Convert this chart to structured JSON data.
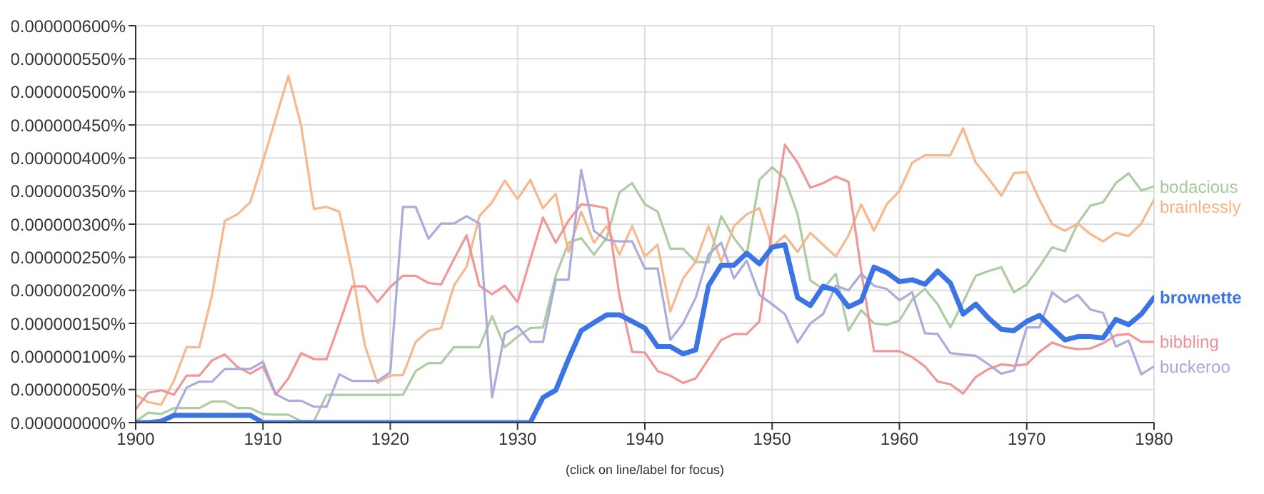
{
  "chart_data": {
    "type": "line",
    "x": [
      1900,
      1901,
      1902,
      1903,
      1904,
      1905,
      1906,
      1907,
      1908,
      1909,
      1910,
      1911,
      1912,
      1913,
      1914,
      1915,
      1916,
      1917,
      1918,
      1919,
      1920,
      1921,
      1922,
      1923,
      1924,
      1925,
      1926,
      1927,
      1928,
      1929,
      1930,
      1931,
      1932,
      1933,
      1934,
      1935,
      1936,
      1937,
      1938,
      1939,
      1940,
      1941,
      1942,
      1943,
      1944,
      1945,
      1946,
      1947,
      1948,
      1949,
      1950,
      1951,
      1952,
      1953,
      1954,
      1955,
      1956,
      1957,
      1958,
      1959,
      1960,
      1961,
      1962,
      1963,
      1964,
      1965,
      1966,
      1967,
      1968,
      1969,
      1970,
      1971,
      1972,
      1973,
      1974,
      1975,
      1976,
      1977,
      1978,
      1979,
      1980
    ],
    "series": [
      {
        "name": "bodacious",
        "color": "#a9c99d",
        "values": [
          2e-09,
          1.5e-08,
          1.3e-08,
          2.2e-08,
          2.2e-08,
          2.2e-08,
          3.2e-08,
          3.2e-08,
          2.2e-08,
          2.2e-08,
          1.3e-08,
          1.2e-08,
          1.2e-08,
          2e-09,
          2e-09,
          4.2e-08,
          4.2e-08,
          4.2e-08,
          4.2e-08,
          4.2e-08,
          4.2e-08,
          4.2e-08,
          7.8e-08,
          9e-08,
          9e-08,
          1.14e-07,
          1.14e-07,
          1.14e-07,
          1.61e-07,
          1.14e-07,
          1.3e-07,
          1.43e-07,
          1.44e-07,
          2.22e-07,
          2.72e-07,
          2.79e-07,
          2.54e-07,
          2.79e-07,
          3.48e-07,
          3.62e-07,
          3.3e-07,
          3.19e-07,
          2.63e-07,
          2.63e-07,
          2.43e-07,
          2.42e-07,
          3.12e-07,
          2.79e-07,
          2.54e-07,
          3.67e-07,
          3.86e-07,
          3.69e-07,
          3.15e-07,
          2.15e-07,
          2.02e-07,
          2.25e-07,
          1.39e-07,
          1.7e-07,
          1.5e-07,
          1.48e-07,
          1.54e-07,
          1.86e-07,
          2.02e-07,
          1.79e-07,
          1.44e-07,
          1.82e-07,
          2.22e-07,
          2.29e-07,
          2.35e-07,
          1.97e-07,
          2.09e-07,
          2.36e-07,
          2.65e-07,
          2.59e-07,
          3.01e-07,
          3.28e-07,
          3.33e-07,
          3.62e-07,
          3.77e-07,
          3.51e-07,
          3.57e-07
        ]
      },
      {
        "name": "brainlessly",
        "color": "#f6b486",
        "values": [
          4.2e-08,
          3.1e-08,
          2.7e-08,
          6.3e-08,
          1.14e-07,
          1.14e-07,
          1.93e-07,
          3.05e-07,
          3.15e-07,
          3.33e-07,
          3.95e-07,
          4.6e-07,
          5.24e-07,
          4.49e-07,
          3.23e-07,
          3.26e-07,
          3.19e-07,
          2.29e-07,
          1.17e-07,
          6e-08,
          7.1e-08,
          7.2e-08,
          1.22e-07,
          1.39e-07,
          1.43e-07,
          2.07e-07,
          2.36e-07,
          3.12e-07,
          3.33e-07,
          3.66e-07,
          3.38e-07,
          3.67e-07,
          3.24e-07,
          3.46e-07,
          2.58e-07,
          3.19e-07,
          2.72e-07,
          2.97e-07,
          2.54e-07,
          2.97e-07,
          2.51e-07,
          2.69e-07,
          1.68e-07,
          2.18e-07,
          2.43e-07,
          2.97e-07,
          2.43e-07,
          2.97e-07,
          3.15e-07,
          3.24e-07,
          2.66e-07,
          2.83e-07,
          2.58e-07,
          2.87e-07,
          2.69e-07,
          2.51e-07,
          2.83e-07,
          3.3e-07,
          2.9e-07,
          3.3e-07,
          3.5e-07,
          3.93e-07,
          4.04e-07,
          4.04e-07,
          4.04e-07,
          4.45e-07,
          3.93e-07,
          3.69e-07,
          3.43e-07,
          3.77e-07,
          3.79e-07,
          3.37e-07,
          3e-07,
          2.9e-07,
          3.01e-07,
          2.85e-07,
          2.74e-07,
          2.87e-07,
          2.82e-07,
          3.01e-07,
          3.37e-07
        ]
      },
      {
        "name": "brownette",
        "color": "#3b74e4",
        "values": [
          0,
          0,
          2e-09,
          1.1e-08,
          1.1e-08,
          1.1e-08,
          1.1e-08,
          1.1e-08,
          1.1e-08,
          1.1e-08,
          0,
          0,
          0,
          0,
          0,
          0,
          0,
          0,
          0,
          0,
          0,
          0,
          0,
          0,
          0,
          0,
          0,
          0,
          0,
          0,
          0,
          0,
          3.8e-08,
          4.9e-08,
          9.6e-08,
          1.39e-07,
          1.51e-07,
          1.63e-07,
          1.63e-07,
          1.53e-07,
          1.43e-07,
          1.15e-07,
          1.15e-07,
          1.04e-07,
          1.1e-07,
          2.07e-07,
          2.38e-07,
          2.38e-07,
          2.56e-07,
          2.4e-07,
          2.65e-07,
          2.69e-07,
          1.89e-07,
          1.77e-07,
          2.06e-07,
          2e-07,
          1.75e-07,
          1.84e-07,
          2.35e-07,
          2.27e-07,
          2.13e-07,
          2.16e-07,
          2.09e-07,
          2.29e-07,
          2.11e-07,
          1.64e-07,
          1.79e-07,
          1.58e-07,
          1.41e-07,
          1.39e-07,
          1.53e-07,
          1.62e-07,
          1.43e-07,
          1.25e-07,
          1.3e-07,
          1.3e-07,
          1.28e-07,
          1.56e-07,
          1.48e-07,
          1.64e-07,
          1.89e-07
        ]
      },
      {
        "name": "bibbling",
        "color": "#ef9191",
        "values": [
          2e-08,
          4.5e-08,
          4.9e-08,
          4.2e-08,
          7.1e-08,
          7.1e-08,
          9.4e-08,
          1.03e-07,
          8.4e-08,
          7.4e-08,
          8.5e-08,
          4.2e-08,
          6.7e-08,
          1.05e-07,
          9.6e-08,
          9.6e-08,
          1.5e-07,
          2.06e-07,
          2.06e-07,
          1.82e-07,
          2.05e-07,
          2.22e-07,
          2.22e-07,
          2.11e-07,
          2.09e-07,
          2.47e-07,
          2.83e-07,
          2.07e-07,
          1.94e-07,
          2.07e-07,
          1.82e-07,
          2.47e-07,
          3.1e-07,
          2.72e-07,
          3.05e-07,
          3.3e-07,
          3.28e-07,
          3.24e-07,
          1.93e-07,
          1.07e-07,
          1.06e-07,
          7.8e-08,
          7.1e-08,
          6e-08,
          6.7e-08,
          9.6e-08,
          1.25e-07,
          1.34e-07,
          1.34e-07,
          1.53e-07,
          2.94e-07,
          4.2e-07,
          3.93e-07,
          3.55e-07,
          3.62e-07,
          3.72e-07,
          3.64e-07,
          2.29e-07,
          1.08e-07,
          1.08e-07,
          1.08e-07,
          9.9e-08,
          8.5e-08,
          6.2e-08,
          5.8e-08,
          4.4e-08,
          6.9e-08,
          8.1e-08,
          8.8e-08,
          8.6e-08,
          8.8e-08,
          1.07e-07,
          1.21e-07,
          1.14e-07,
          1.11e-07,
          1.12e-07,
          1.2e-07,
          1.32e-07,
          1.34e-07,
          1.22e-07,
          1.22e-07
        ]
      },
      {
        "name": "buckeroo",
        "color": "#a7a7db",
        "values": [
          0,
          0,
          2e-09,
          1.3e-08,
          5.3e-08,
          6.2e-08,
          6.2e-08,
          8.1e-08,
          8.1e-08,
          8.1e-08,
          9.2e-08,
          4.3e-08,
          3.3e-08,
          3.3e-08,
          2.4e-08,
          2.4e-08,
          7.3e-08,
          6.3e-08,
          6.3e-08,
          6.3e-08,
          7.6e-08,
          3.26e-07,
          3.26e-07,
          2.78e-07,
          3.01e-07,
          3.01e-07,
          3.12e-07,
          3.01e-07,
          3.8e-08,
          1.35e-07,
          1.46e-07,
          1.22e-07,
          1.22e-07,
          2.16e-07,
          2.16e-07,
          3.82e-07,
          2.9e-07,
          2.76e-07,
          2.74e-07,
          2.74e-07,
          2.33e-07,
          2.33e-07,
          1.25e-07,
          1.5e-07,
          1.89e-07,
          2.54e-07,
          2.72e-07,
          2.18e-07,
          2.45e-07,
          1.93e-07,
          1.79e-07,
          1.64e-07,
          1.21e-07,
          1.5e-07,
          1.64e-07,
          2.07e-07,
          2e-07,
          2.25e-07,
          2.07e-07,
          2.02e-07,
          1.85e-07,
          1.97e-07,
          1.35e-07,
          1.34e-07,
          1.05e-07,
          1.03e-07,
          1.01e-07,
          8.8e-08,
          7.4e-08,
          7.9e-08,
          1.44e-07,
          1.44e-07,
          1.97e-07,
          1.82e-07,
          1.93e-07,
          1.71e-07,
          1.66e-07,
          1.15e-07,
          1.24e-07,
          7.3e-08,
          8.5e-08
        ]
      }
    ],
    "xlim": [
      1900,
      1980
    ],
    "xticks": [
      1900,
      1910,
      1920,
      1930,
      1940,
      1950,
      1960,
      1970,
      1980
    ],
    "ylim": [
      0,
      6e-07
    ],
    "yticks": [
      {
        "value": 0,
        "label": "0.000000000%"
      },
      {
        "value": 5e-08,
        "label": "0.000000050%"
      },
      {
        "value": 1e-07,
        "label": "0.000000100%"
      },
      {
        "value": 1.5e-07,
        "label": "0.000000150%"
      },
      {
        "value": 2e-07,
        "label": "0.000000200%"
      },
      {
        "value": 2.5e-07,
        "label": "0.000000250%"
      },
      {
        "value": 3e-07,
        "label": "0.000000300%"
      },
      {
        "value": 3.5e-07,
        "label": "0.000000350%"
      },
      {
        "value": 4e-07,
        "label": "0.000000400%"
      },
      {
        "value": 4.5e-07,
        "label": "0.000000450%"
      },
      {
        "value": 5e-07,
        "label": "0.000000500%"
      },
      {
        "value": 5.5e-07,
        "label": "0.000000550%"
      },
      {
        "value": 6e-07,
        "label": "0.000000600%"
      }
    ],
    "grid": true,
    "legend": false,
    "annotations": [
      "(click on line/label for focus)"
    ]
  }
}
